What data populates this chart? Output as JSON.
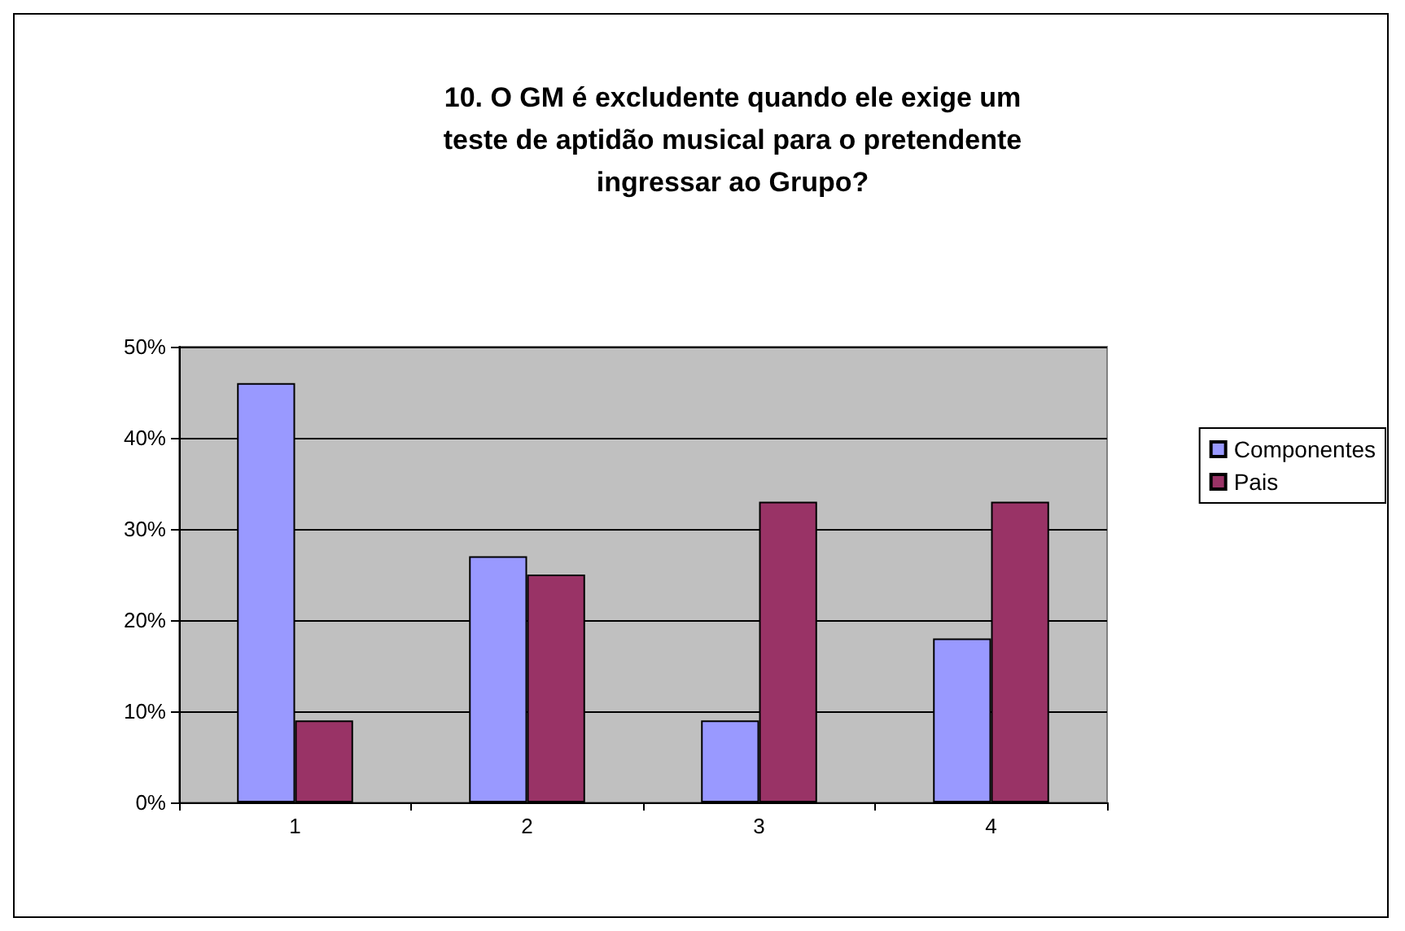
{
  "chart_data": {
    "type": "bar",
    "title": "10. O GM é excludente quando ele exige um\nteste de aptidão musical para o pretendente\ningressar ao Grupo?",
    "categories": [
      "1",
      "2",
      "3",
      "4"
    ],
    "series": [
      {
        "name": "Componentes",
        "color": "#9999ff",
        "values": [
          46,
          27,
          9,
          18
        ]
      },
      {
        "name": "Pais",
        "color": "#993366",
        "values": [
          9,
          25,
          33,
          33
        ]
      }
    ],
    "ylim": [
      0,
      50
    ],
    "yticks": [
      {
        "value": 0,
        "label": "0%"
      },
      {
        "value": 10,
        "label": "10%"
      },
      {
        "value": 20,
        "label": "20%"
      },
      {
        "value": 30,
        "label": "30%"
      },
      {
        "value": 40,
        "label": "40%"
      },
      {
        "value": 50,
        "label": "50%"
      }
    ],
    "grid": "y",
    "legend": "right"
  }
}
